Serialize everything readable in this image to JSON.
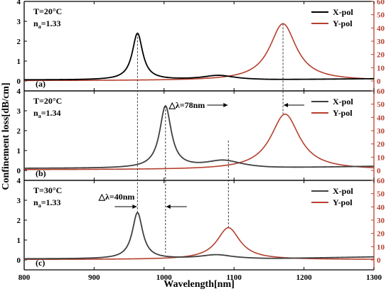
{
  "chart_data": {
    "type": "line",
    "xlabel": "Wavelength[nm]",
    "ylabel": "Confinement loss[dB/cm]",
    "xlim": [
      800,
      1300
    ],
    "xticks": [
      800,
      900,
      1000,
      1100,
      1200,
      1300
    ],
    "colors": {
      "x_pol": "#000000",
      "x_pol_dim": "#404040",
      "y_pol": "#b5402f"
    },
    "panels": [
      {
        "label": "(a)",
        "temp_text": "T=20°C",
        "na_main": "n",
        "na_sub": "a",
        "na_val": "=1.33",
        "left_ylim": [
          -0.5,
          4
        ],
        "left_ticks": [
          0,
          1,
          2,
          3,
          4
        ],
        "right_ylim": [
          -7.5,
          60
        ],
        "right_ticks": [
          0,
          10,
          20,
          30,
          40,
          50,
          60
        ],
        "x_pol": {
          "name": "X-pol",
          "peaks": [
            {
              "x0": 962,
              "g": 9,
              "a": 2.34
            },
            {
              "x0": 1078,
              "g": 28,
              "a": 0.22
            }
          ],
          "base": 0.05,
          "tail": 0.06
        },
        "y_pol": {
          "name": "Y-pol",
          "peaks": [
            {
              "x0": 1170,
              "g": 23,
              "a": 43
            }
          ],
          "base": 0.2
        }
      },
      {
        "label": "(b)",
        "temp_text": "T=20°C",
        "na_main": "n",
        "na_sub": "a",
        "na_val": "=1.34",
        "left_ylim": [
          -0.5,
          4
        ],
        "left_ticks": [
          0,
          1,
          2,
          3,
          4
        ],
        "right_ylim": [
          -7.5,
          60
        ],
        "right_ticks": [
          0,
          10,
          20,
          30,
          40,
          50,
          60
        ],
        "x_pol": {
          "name": "X-pol",
          "peaks": [
            {
              "x0": 1002,
              "g": 10,
              "a": 3.1
            },
            {
              "x0": 1085,
              "g": 32,
              "a": 0.38
            }
          ],
          "base": 0.1,
          "tail": 0.1
        },
        "y_pol": {
          "name": "Y-pol",
          "peaks": [
            {
              "x0": 1173,
              "g": 25,
              "a": 42
            }
          ],
          "base": 0.5
        },
        "annotation": "△λ=78nm"
      },
      {
        "label": "(c)",
        "temp_text": "T=30°C",
        "na_main": "n",
        "na_sub": "a",
        "na_val": "=1.33",
        "left_ylim": [
          -0.5,
          4
        ],
        "left_ticks": [
          0,
          1,
          2,
          3,
          4
        ],
        "right_ylim": [
          -7.5,
          60
        ],
        "right_ticks": [
          0,
          10,
          20,
          30,
          40,
          50,
          60
        ],
        "x_pol": {
          "name": "X-pol",
          "peaks": [
            {
              "x0": 962,
              "g": 9,
              "a": 2.32
            },
            {
              "x0": 1075,
              "g": 28,
              "a": 0.2
            }
          ],
          "base": 0.05,
          "tail": 0.1
        },
        "y_pol": {
          "name": "Y-pol",
          "peaks": [
            {
              "x0": 1092,
              "g": 20,
              "a": 24
            }
          ],
          "base": 0.3
        },
        "annotation": "△λ=40nm"
      }
    ]
  }
}
